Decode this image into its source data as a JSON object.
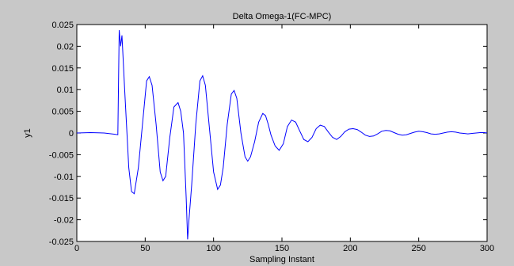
{
  "chart_data": {
    "type": "line",
    "title": "Delta Omega-1(FC-MPC)",
    "xlabel": "Sampling Instant",
    "ylabel": "y1",
    "xlim": [
      0,
      300
    ],
    "ylim": [
      -0.025,
      0.025
    ],
    "xticks": [
      "0",
      "50",
      "100",
      "150",
      "200",
      "250",
      "300"
    ],
    "yticks": [
      "0.025",
      "0.02",
      "0.015",
      "0.01",
      "0.005",
      "0",
      "-0.005",
      "-0.01",
      "-0.015",
      "-0.02",
      "-0.025"
    ],
    "grid": false,
    "series": [
      {
        "color": "#0000ff",
        "x": [
          0,
          10,
          20,
          28,
          30,
          31,
          32,
          33,
          35,
          38,
          40,
          42,
          45,
          48,
          51,
          53,
          55,
          58,
          61,
          63,
          65,
          68,
          71,
          74,
          76,
          78,
          80,
          81,
          82,
          84,
          87,
          90,
          92,
          94,
          97,
          100,
          103,
          105,
          107,
          110,
          113,
          115,
          117,
          120,
          123,
          125,
          127,
          130,
          133,
          136,
          138,
          140,
          142,
          145,
          148,
          151,
          154,
          157,
          160,
          163,
          166,
          169,
          172,
          175,
          178,
          181,
          184,
          187,
          190,
          193,
          196,
          199,
          202,
          205,
          208,
          211,
          214,
          217,
          220,
          223,
          226,
          229,
          232,
          235,
          238,
          241,
          244,
          247,
          250,
          253,
          256,
          259,
          262,
          265,
          268,
          271,
          274,
          277,
          280,
          283,
          286,
          289,
          292,
          295,
          298,
          300
        ],
        "y": [
          0.0,
          0.0001,
          0.0,
          -0.0003,
          -0.0004,
          0.0237,
          0.02,
          0.0225,
          0.01,
          -0.008,
          -0.0135,
          -0.014,
          -0.008,
          0.002,
          0.012,
          0.013,
          0.011,
          0.002,
          -0.009,
          -0.011,
          -0.01,
          -0.001,
          0.006,
          0.007,
          0.005,
          0.0,
          -0.015,
          -0.0245,
          -0.02,
          -0.012,
          0.002,
          0.012,
          0.0132,
          0.011,
          0.001,
          -0.009,
          -0.013,
          -0.012,
          -0.008,
          0.002,
          0.009,
          0.0098,
          0.008,
          0.0,
          -0.0055,
          -0.0065,
          -0.0055,
          -0.002,
          0.0025,
          0.0045,
          0.004,
          0.002,
          -0.0005,
          -0.003,
          -0.004,
          -0.0025,
          0.0015,
          0.003,
          0.0025,
          0.0005,
          -0.0015,
          -0.002,
          -0.001,
          0.001,
          0.0018,
          0.0015,
          0.0002,
          -0.001,
          -0.0015,
          -0.0008,
          0.0003,
          0.0009,
          0.001,
          0.0008,
          0.0002,
          -0.0005,
          -0.0008,
          -0.0007,
          -0.0002,
          0.0004,
          0.0006,
          0.0005,
          0.0001,
          -0.0003,
          -0.0005,
          -0.0004,
          -0.0001,
          0.0002,
          0.0004,
          0.0003,
          0.0001,
          -0.0002,
          -0.0003,
          -0.0002,
          0.0,
          0.0002,
          0.0003,
          0.0002,
          0.0,
          -0.0001,
          -0.0002,
          -0.0001,
          0.0,
          0.0001,
          0.0001,
          0.0
        ]
      }
    ]
  }
}
